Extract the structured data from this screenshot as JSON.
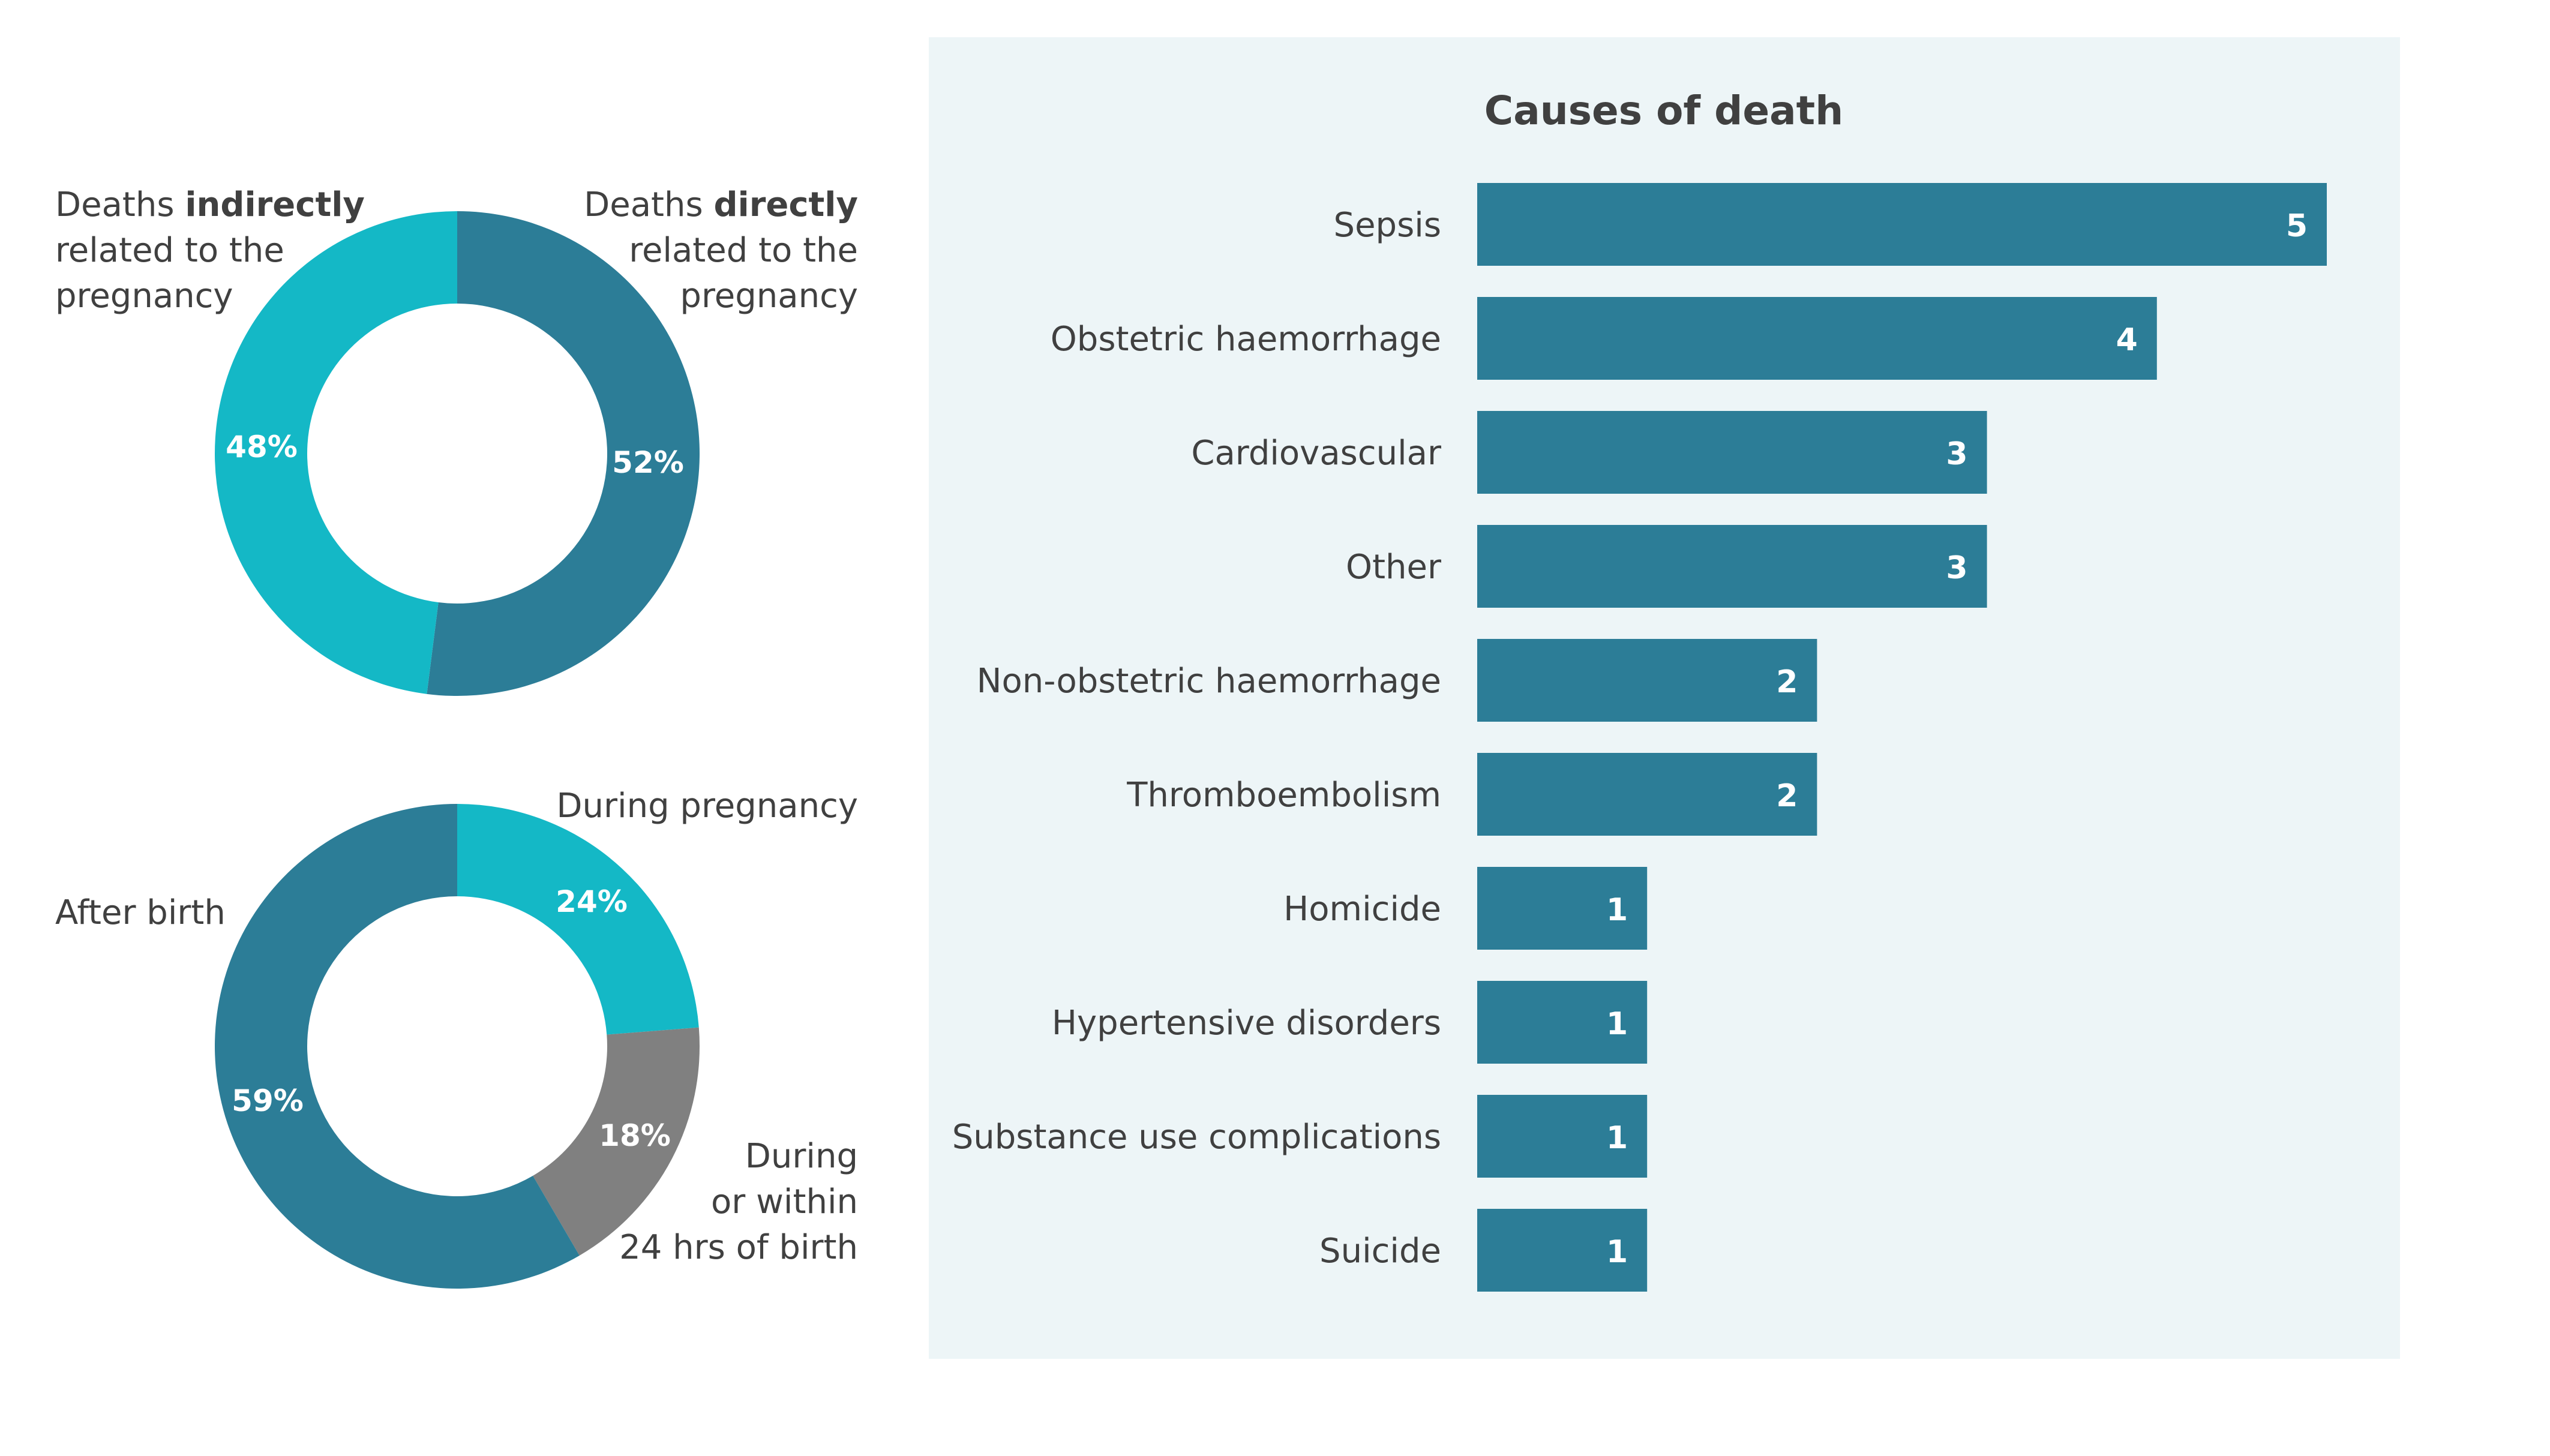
{
  "chart_data": [
    {
      "type": "pie",
      "variant": "donut",
      "slices": [
        {
          "label_parts": [
            [
              "Deaths ",
              "directly"
            ],
            [
              "related to the",
              ""
            ],
            [
              "pregnancy",
              ""
            ]
          ],
          "value": 52,
          "value_label": "52%",
          "color": "#2c7d97"
        },
        {
          "label_parts": [
            [
              "Deaths ",
              "indirectly"
            ],
            [
              "related to the",
              ""
            ],
            [
              "pregnancy",
              ""
            ]
          ],
          "value": 48,
          "value_label": "48%",
          "color": "#14b8c6"
        }
      ]
    },
    {
      "type": "pie",
      "variant": "donut",
      "slices": [
        {
          "label_parts": [
            [
              "During pregnancy",
              ""
            ]
          ],
          "value": 24,
          "value_label": "24%",
          "color": "#14b8c6"
        },
        {
          "label_parts": [
            [
              "During",
              ""
            ],
            [
              "or within",
              ""
            ],
            [
              "24 hrs of birth",
              ""
            ]
          ],
          "value": 18,
          "value_label": "18%",
          "color": "#808080"
        },
        {
          "label_parts": [
            [
              "After birth",
              ""
            ]
          ],
          "value": 59,
          "value_label": "59%",
          "color": "#2c7d97"
        }
      ]
    },
    {
      "type": "bar",
      "orientation": "horizontal",
      "title": "Causes of death",
      "categories": [
        "Sepsis",
        "Obstetric haemorrhage",
        "Cardiovascular",
        "Other",
        "Non-obstetric haemorrhage",
        "Thromboembolism",
        "Homicide",
        "Hypertensive disorders",
        "Substance use complications",
        "Suicide"
      ],
      "values": [
        5,
        4,
        3,
        3,
        2,
        2,
        1,
        1,
        1,
        1
      ],
      "xlim": [
        0,
        5
      ],
      "bar_color": "#2c7d97",
      "panel_color": "#edf5f7",
      "grid": false
    }
  ]
}
